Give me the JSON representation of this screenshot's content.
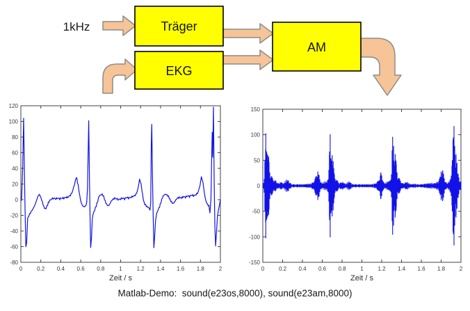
{
  "diagram": {
    "input_label": "1kHz",
    "boxes": [
      {
        "label": "Träger"
      },
      {
        "label": "EKG"
      },
      {
        "label": "AM"
      }
    ],
    "box_fill": "#FFFF00",
    "box_border": "#000000",
    "arrow_fill": "#F6C496",
    "arrow_border": "#8C8C8C"
  },
  "caption": {
    "text": "Matlab-Demo:  sound(e23os,8000), sound(e23am,8000)"
  },
  "chart_data": [
    {
      "type": "line",
      "title": "",
      "xlabel": "Zeit / s",
      "ylabel": "",
      "xlim": [
        0,
        2
      ],
      "ylim": [
        -80,
        120
      ],
      "x_ticks": [
        0,
        0.2,
        0.4,
        0.6,
        0.8,
        1,
        1.2,
        1.4,
        1.6,
        1.8,
        2
      ],
      "x_tick_labels": [
        "0",
        "0.2",
        "0.4",
        "0.6",
        "0.8",
        "1",
        "1.2",
        "1.4",
        "1.6",
        "1.8",
        "2"
      ],
      "y_ticks": [
        -80,
        -60,
        -40,
        -20,
        0,
        20,
        40,
        60,
        80,
        100,
        120
      ],
      "y_tick_labels": [
        "-80",
        "-60",
        "-40",
        "-20",
        "0",
        "20",
        "40",
        "60",
        "80",
        "100",
        "120"
      ],
      "grid": false,
      "line_color": "#1212E8",
      "axis_color": "#404040",
      "noise_amp": 1.3,
      "points": [
        [
          0,
          -2
        ],
        [
          0.008,
          2
        ],
        [
          0.018,
          40
        ],
        [
          0.028,
          104
        ],
        [
          0.036,
          30
        ],
        [
          0.043,
          -20
        ],
        [
          0.05,
          -59
        ],
        [
          0.058,
          -56
        ],
        [
          0.068,
          -24
        ],
        [
          0.08,
          -20
        ],
        [
          0.095,
          -17
        ],
        [
          0.11,
          -14
        ],
        [
          0.125,
          -11
        ],
        [
          0.14,
          -7
        ],
        [
          0.155,
          -2
        ],
        [
          0.17,
          4
        ],
        [
          0.185,
          7
        ],
        [
          0.2,
          3
        ],
        [
          0.215,
          -3
        ],
        [
          0.23,
          -9
        ],
        [
          0.245,
          -12
        ],
        [
          0.26,
          -9
        ],
        [
          0.275,
          -4
        ],
        [
          0.29,
          -1
        ],
        [
          0.31,
          1
        ],
        [
          0.33,
          2
        ],
        [
          0.35,
          1
        ],
        [
          0.37,
          2
        ],
        [
          0.39,
          1
        ],
        [
          0.41,
          2
        ],
        [
          0.43,
          2
        ],
        [
          0.45,
          3
        ],
        [
          0.47,
          3
        ],
        [
          0.49,
          5
        ],
        [
          0.51,
          8
        ],
        [
          0.53,
          16
        ],
        [
          0.55,
          26
        ],
        [
          0.56,
          27
        ],
        [
          0.575,
          18
        ],
        [
          0.59,
          5
        ],
        [
          0.605,
          -4
        ],
        [
          0.62,
          -8
        ],
        [
          0.635,
          -9
        ],
        [
          0.65,
          -8
        ],
        [
          0.66,
          -3
        ],
        [
          0.668,
          15
        ],
        [
          0.674,
          58
        ],
        [
          0.68,
          101
        ],
        [
          0.688,
          25
        ],
        [
          0.694,
          -25
        ],
        [
          0.7,
          -60
        ],
        [
          0.708,
          -50
        ],
        [
          0.716,
          -25
        ],
        [
          0.728,
          -17
        ],
        [
          0.74,
          -13
        ],
        [
          0.755,
          -8
        ],
        [
          0.77,
          -2
        ],
        [
          0.785,
          5
        ],
        [
          0.8,
          6
        ],
        [
          0.815,
          7
        ],
        [
          0.83,
          4
        ],
        [
          0.845,
          -2
        ],
        [
          0.86,
          -6
        ],
        [
          0.875,
          -8
        ],
        [
          0.89,
          -6
        ],
        [
          0.905,
          -2
        ],
        [
          0.92,
          0
        ],
        [
          0.94,
          2
        ],
        [
          0.96,
          1
        ],
        [
          0.98,
          0
        ],
        [
          1,
          1
        ],
        [
          1.02,
          2
        ],
        [
          1.04,
          1
        ],
        [
          1.06,
          3
        ],
        [
          1.08,
          2
        ],
        [
          1.1,
          3
        ],
        [
          1.12,
          4
        ],
        [
          1.14,
          5
        ],
        [
          1.16,
          8
        ],
        [
          1.175,
          15
        ],
        [
          1.19,
          26
        ],
        [
          1.205,
          20
        ],
        [
          1.22,
          6
        ],
        [
          1.235,
          -4
        ],
        [
          1.25,
          -7
        ],
        [
          1.265,
          -9
        ],
        [
          1.28,
          -10
        ],
        [
          1.295,
          -13
        ],
        [
          1.302,
          -4
        ],
        [
          1.307,
          70
        ],
        [
          1.312,
          96
        ],
        [
          1.319,
          30
        ],
        [
          1.326,
          -20
        ],
        [
          1.333,
          -62
        ],
        [
          1.341,
          -48
        ],
        [
          1.35,
          -26
        ],
        [
          1.362,
          -18
        ],
        [
          1.375,
          -13
        ],
        [
          1.39,
          -9
        ],
        [
          1.405,
          -3
        ],
        [
          1.42,
          3
        ],
        [
          1.435,
          6
        ],
        [
          1.45,
          7
        ],
        [
          1.465,
          6
        ],
        [
          1.48,
          4
        ],
        [
          1.495,
          0
        ],
        [
          1.51,
          -3
        ],
        [
          1.525,
          -5
        ],
        [
          1.54,
          -3
        ],
        [
          1.555,
          0
        ],
        [
          1.57,
          2
        ],
        [
          1.59,
          3
        ],
        [
          1.61,
          2
        ],
        [
          1.63,
          4
        ],
        [
          1.65,
          3
        ],
        [
          1.67,
          5
        ],
        [
          1.69,
          4
        ],
        [
          1.71,
          6
        ],
        [
          1.73,
          5
        ],
        [
          1.75,
          6
        ],
        [
          1.77,
          8
        ],
        [
          1.79,
          15
        ],
        [
          1.81,
          29
        ],
        [
          1.825,
          22
        ],
        [
          1.84,
          8
        ],
        [
          1.855,
          -2
        ],
        [
          1.87,
          -6
        ],
        [
          1.885,
          -8
        ],
        [
          1.895,
          -17
        ],
        [
          1.905,
          0
        ],
        [
          1.912,
          50
        ],
        [
          1.918,
          87
        ],
        [
          1.923,
          55
        ],
        [
          1.93,
          118
        ],
        [
          1.938,
          20
        ],
        [
          1.945,
          -35
        ],
        [
          1.952,
          -60
        ],
        [
          1.96,
          -42
        ],
        [
          1.97,
          -22
        ],
        [
          1.98,
          -13
        ],
        [
          1.99,
          -6
        ],
        [
          2,
          0
        ]
      ]
    },
    {
      "type": "area",
      "title": "",
      "xlabel": "Zeit / s",
      "ylabel": "",
      "xlim": [
        0,
        2
      ],
      "ylim": [
        -150,
        150
      ],
      "x_ticks": [
        0,
        0.2,
        0.4,
        0.6,
        0.8,
        1,
        1.2,
        1.4,
        1.6,
        1.8,
        2
      ],
      "x_tick_labels": [
        "0",
        "0.2",
        "0.4",
        "0.6",
        "0.8",
        "1",
        "1.2",
        "1.4",
        "1.6",
        "1.8",
        "2"
      ],
      "y_ticks": [
        -150,
        -100,
        -50,
        0,
        50,
        100,
        150
      ],
      "y_tick_labels": [
        "-150",
        "-100",
        "-50",
        "0",
        "50",
        "100",
        "150"
      ],
      "grid": false,
      "line_color": "#1212E8",
      "axis_color": "#404040",
      "texture": {
        "base": 0.5,
        "depth": 0.5,
        "freq": 23
      },
      "peak_line_min": 24,
      "envelope": [
        [
          0,
          4
        ],
        [
          0.01,
          6
        ],
        [
          0.02,
          45
        ],
        [
          0.03,
          103
        ],
        [
          0.04,
          65
        ],
        [
          0.05,
          60
        ],
        [
          0.06,
          57
        ],
        [
          0.07,
          26
        ],
        [
          0.085,
          20
        ],
        [
          0.1,
          16
        ],
        [
          0.115,
          13
        ],
        [
          0.13,
          10
        ],
        [
          0.145,
          7
        ],
        [
          0.16,
          5
        ],
        [
          0.175,
          7
        ],
        [
          0.19,
          8
        ],
        [
          0.205,
          4
        ],
        [
          0.22,
          8
        ],
        [
          0.235,
          12
        ],
        [
          0.25,
          13
        ],
        [
          0.265,
          9
        ],
        [
          0.28,
          5
        ],
        [
          0.3,
          3
        ],
        [
          0.33,
          3
        ],
        [
          0.36,
          3
        ],
        [
          0.39,
          3
        ],
        [
          0.42,
          3
        ],
        [
          0.45,
          4
        ],
        [
          0.48,
          4
        ],
        [
          0.505,
          7
        ],
        [
          0.53,
          16
        ],
        [
          0.555,
          28
        ],
        [
          0.57,
          20
        ],
        [
          0.585,
          8
        ],
        [
          0.6,
          5
        ],
        [
          0.615,
          8
        ],
        [
          0.63,
          9
        ],
        [
          0.645,
          8
        ],
        [
          0.66,
          15
        ],
        [
          0.672,
          60
        ],
        [
          0.68,
          101
        ],
        [
          0.69,
          45
        ],
        [
          0.7,
          60
        ],
        [
          0.71,
          48
        ],
        [
          0.72,
          25
        ],
        [
          0.732,
          18
        ],
        [
          0.745,
          13
        ],
        [
          0.76,
          8
        ],
        [
          0.775,
          6
        ],
        [
          0.79,
          7
        ],
        [
          0.805,
          8
        ],
        [
          0.82,
          6
        ],
        [
          0.835,
          4
        ],
        [
          0.85,
          6
        ],
        [
          0.865,
          9
        ],
        [
          0.88,
          8
        ],
        [
          0.895,
          5
        ],
        [
          0.91,
          3
        ],
        [
          0.94,
          3
        ],
        [
          0.97,
          3
        ],
        [
          1,
          3
        ],
        [
          1.03,
          3
        ],
        [
          1.06,
          3
        ],
        [
          1.09,
          3
        ],
        [
          1.12,
          4
        ],
        [
          1.145,
          6
        ],
        [
          1.165,
          10
        ],
        [
          1.19,
          26
        ],
        [
          1.205,
          19
        ],
        [
          1.22,
          7
        ],
        [
          1.235,
          5
        ],
        [
          1.25,
          8
        ],
        [
          1.265,
          9
        ],
        [
          1.28,
          11
        ],
        [
          1.295,
          14
        ],
        [
          1.31,
          96
        ],
        [
          1.32,
          78
        ],
        [
          1.33,
          40
        ],
        [
          1.336,
          62
        ],
        [
          1.345,
          48
        ],
        [
          1.355,
          26
        ],
        [
          1.368,
          18
        ],
        [
          1.38,
          14
        ],
        [
          1.395,
          10
        ],
        [
          1.41,
          5
        ],
        [
          1.425,
          5
        ],
        [
          1.44,
          7
        ],
        [
          1.455,
          8
        ],
        [
          1.47,
          6
        ],
        [
          1.485,
          4
        ],
        [
          1.5,
          3
        ],
        [
          1.52,
          4
        ],
        [
          1.54,
          4
        ],
        [
          1.56,
          3
        ],
        [
          1.58,
          3
        ],
        [
          1.6,
          3
        ],
        [
          1.62,
          4
        ],
        [
          1.64,
          4
        ],
        [
          1.66,
          5
        ],
        [
          1.68,
          5
        ],
        [
          1.7,
          6
        ],
        [
          1.72,
          5
        ],
        [
          1.74,
          6
        ],
        [
          1.76,
          8
        ],
        [
          1.78,
          12
        ],
        [
          1.8,
          28
        ],
        [
          1.815,
          30
        ],
        [
          1.83,
          20
        ],
        [
          1.845,
          8
        ],
        [
          1.86,
          5
        ],
        [
          1.875,
          8
        ],
        [
          1.89,
          12
        ],
        [
          1.9,
          20
        ],
        [
          1.912,
          50
        ],
        [
          1.92,
          90
        ],
        [
          1.93,
          117
        ],
        [
          1.94,
          60
        ],
        [
          1.95,
          62
        ],
        [
          1.96,
          45
        ],
        [
          1.972,
          24
        ],
        [
          1.984,
          14
        ],
        [
          2,
          8
        ]
      ]
    }
  ]
}
